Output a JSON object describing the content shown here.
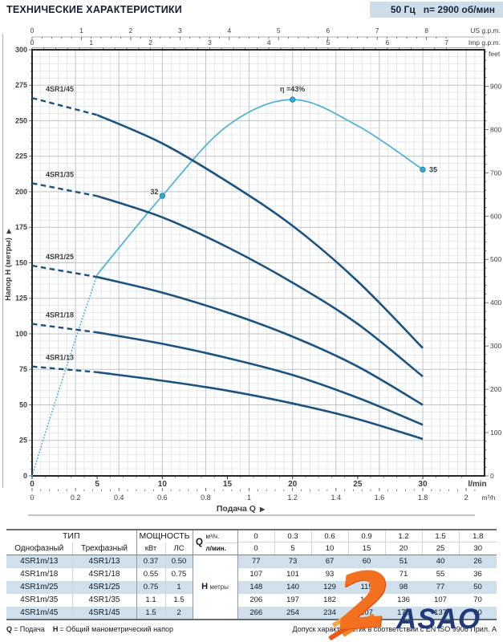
{
  "header": {
    "title": "ТЕХНИЧЕСКИЕ ХАРАКТЕРИСТИКИ",
    "frequency": "50 Гц",
    "speed": "n= 2900 об/мин"
  },
  "chart_data": {
    "type": "line",
    "x_label": "Подача Q",
    "y_label": "Напор H (метры)",
    "axes": {
      "lmin": {
        "unit": "l/min",
        "ticks": [
          0,
          5,
          10,
          15,
          20,
          25,
          30
        ]
      },
      "m3h": {
        "unit": "m³/h",
        "ticks": [
          "0",
          "0.2",
          "0.4",
          "0.6",
          "0.8",
          "1",
          "1.2",
          "1.4",
          "1.6",
          "1.8",
          "2"
        ]
      },
      "usgpm": {
        "unit": "US g.p.m.",
        "ticks": [
          0,
          1,
          2,
          3,
          4,
          5,
          6,
          7,
          8
        ]
      },
      "impgpm": {
        "unit": "Imp g.p.m.",
        "ticks": [
          0,
          1,
          2,
          3,
          4,
          5,
          6,
          7
        ]
      },
      "meters": {
        "ticks": [
          0,
          25,
          50,
          75,
          100,
          125,
          150,
          175,
          200,
          225,
          250,
          275,
          300
        ]
      },
      "feet": {
        "unit": "feet",
        "ticks": [
          0,
          100,
          200,
          300,
          400,
          500,
          600,
          700,
          800,
          900
        ]
      }
    },
    "q_lmin": [
      0,
      5,
      10,
      15,
      20,
      25,
      30
    ],
    "dashed_below_lmin": 5,
    "series": [
      {
        "name": "4SR1/45",
        "values_m": [
          266,
          254,
          234,
          207,
          176,
          137,
          90
        ]
      },
      {
        "name": "4SR1/35",
        "values_m": [
          206,
          197,
          182,
          161,
          136,
          107,
          70
        ]
      },
      {
        "name": "4SR1/25",
        "values_m": [
          148,
          140,
          129,
          115,
          98,
          77,
          50
        ]
      },
      {
        "name": "4SR1/18",
        "values_m": [
          107,
          101,
          93,
          83,
          71,
          55,
          36
        ]
      },
      {
        "name": "4SR1/13",
        "values_m": [
          77,
          73,
          67,
          60,
          51,
          40,
          26
        ]
      }
    ],
    "efficiency": {
      "curve_q_lmin": [
        5,
        10,
        15,
        20,
        25,
        30
      ],
      "curve_eta_pct": [
        23,
        32,
        40,
        43,
        40,
        35
      ],
      "meters_per_pct": 6.16,
      "markers": [
        {
          "q": 10,
          "label": "32"
        },
        {
          "q": 20,
          "label": "η =43%"
        },
        {
          "q": 30,
          "label": "35"
        }
      ]
    },
    "colors": {
      "pump_curve": "#1a5381",
      "efficiency_curve": "#4cb0d8",
      "grid_minor": "#dfe2e6",
      "grid_major": "#bcc2c8"
    }
  },
  "table": {
    "headers": {
      "type": "ТИП",
      "power": "МОЩНОСТЬ",
      "single": "Однофазный",
      "three": "Трехфазный",
      "kw": "кВт",
      "hp": "ЛС",
      "q": "Q",
      "m3h": "м³/ч.",
      "lmin": "л/мин.",
      "h": "H",
      "meters": "метры"
    },
    "q_m3h": [
      "0",
      "0.3",
      "0.6",
      "0.9",
      "1.2",
      "1.5",
      "1.8"
    ],
    "q_lmin": [
      "0",
      "5",
      "10",
      "15",
      "20",
      "25",
      "30"
    ],
    "rows": [
      {
        "single": "4SR1m/13",
        "three": "4SR1/13",
        "kw": "0.37",
        "hp": "0.50",
        "h": [
          "77",
          "73",
          "67",
          "60",
          "51",
          "40",
          "26"
        ]
      },
      {
        "single": "4SR1m/18",
        "three": "4SR1/18",
        "kw": "0.55",
        "hp": "0.75",
        "h": [
          "107",
          "101",
          "93",
          "83",
          "71",
          "55",
          "36"
        ]
      },
      {
        "single": "4SR1m/25",
        "three": "4SR1/25",
        "kw": "0.75",
        "hp": "1",
        "h": [
          "148",
          "140",
          "129",
          "115",
          "98",
          "77",
          "50"
        ]
      },
      {
        "single": "4SR1m/35",
        "three": "4SR1/35",
        "kw": "1.1",
        "hp": "1.5",
        "h": [
          "206",
          "197",
          "182",
          "161",
          "136",
          "107",
          "70"
        ]
      },
      {
        "single": "4SR1m/45",
        "three": "4SR1/45",
        "kw": "1.5",
        "hp": "2",
        "h": [
          "266",
          "254",
          "234",
          "207",
          "176",
          "137",
          "90"
        ]
      }
    ]
  },
  "footer": {
    "q_sym": "Q",
    "q_text": "= Подача",
    "h_sym": "H",
    "h_text": "= Общий манометрический напор",
    "tolerance": "Допуск характеристик в соответствии с EN ISO 9906 Прил. A"
  },
  "watermark": {
    "glyph": "2",
    "text": "ASAO"
  }
}
